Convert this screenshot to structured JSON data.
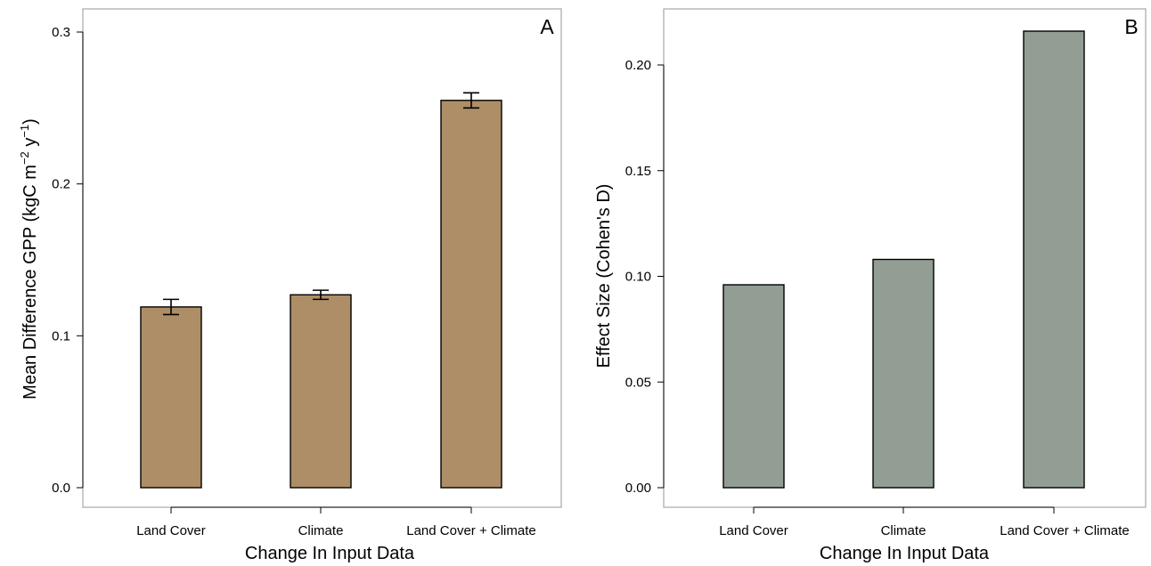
{
  "chart_data": [
    {
      "type": "bar",
      "panel_label": "A",
      "categories": [
        "Land Cover",
        "Climate",
        "Land Cover + Climate"
      ],
      "values": [
        0.119,
        0.127,
        0.255
      ],
      "error": [
        0.005,
        0.003,
        0.005
      ],
      "xlabel": "Change In Input Data",
      "ylabel": {
        "base": "Mean Difference GPP (kgC m",
        "exp1": "−2",
        "mid": " y",
        "exp2": "−1",
        "end": ")"
      },
      "ylim": [
        0,
        0.3
      ],
      "yticks": [
        "0.0",
        "0.1",
        "0.2",
        "0.3"
      ],
      "bar_color": "#ae8e66",
      "grid": false
    },
    {
      "type": "bar",
      "panel_label": "B",
      "categories": [
        "Land Cover",
        "Climate",
        "Land Cover + Climate"
      ],
      "values": [
        0.096,
        0.108,
        0.216
      ],
      "xlabel": "Change In Input Data",
      "ylabel": "Effect Size (Cohen's D)",
      "ylim": [
        0,
        0.2
      ],
      "yticks": [
        "0.00",
        "0.05",
        "0.10",
        "0.15",
        "0.20"
      ],
      "bar_color": "#929e94",
      "grid": false
    }
  ]
}
